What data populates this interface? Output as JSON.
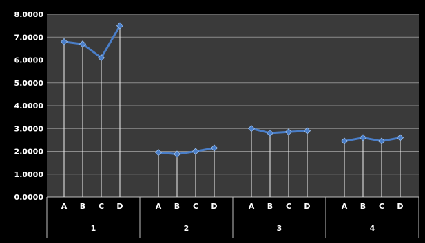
{
  "chart_data": {
    "type": "line",
    "groups": [
      "1",
      "2",
      "3",
      "4"
    ],
    "categories": [
      "A",
      "B",
      "C",
      "D"
    ],
    "series": [
      {
        "values": [
          6.8,
          6.7,
          6.1,
          7.5
        ]
      },
      {
        "values": [
          1.95,
          1.88,
          2.0,
          2.15
        ]
      },
      {
        "values": [
          3.0,
          2.8,
          2.85,
          2.9
        ]
      },
      {
        "values": [
          2.45,
          2.6,
          2.45,
          2.6
        ]
      }
    ],
    "yticks": [
      "0.0000",
      "1.0000",
      "2.0000",
      "3.0000",
      "4.0000",
      "5.0000",
      "6.0000",
      "7.0000",
      "8.0000"
    ],
    "ylim": [
      0,
      8
    ],
    "grid": true,
    "drop_lines": true,
    "markers": "diamond",
    "colors": {
      "background": "#000000",
      "plot_area": "#3a3a3a",
      "gridline": "#8c8c8c",
      "line": "#4a7ec8",
      "marker": "#4a7ec8",
      "drop_line": "#f0f0f0",
      "text": "#ffffff"
    }
  }
}
